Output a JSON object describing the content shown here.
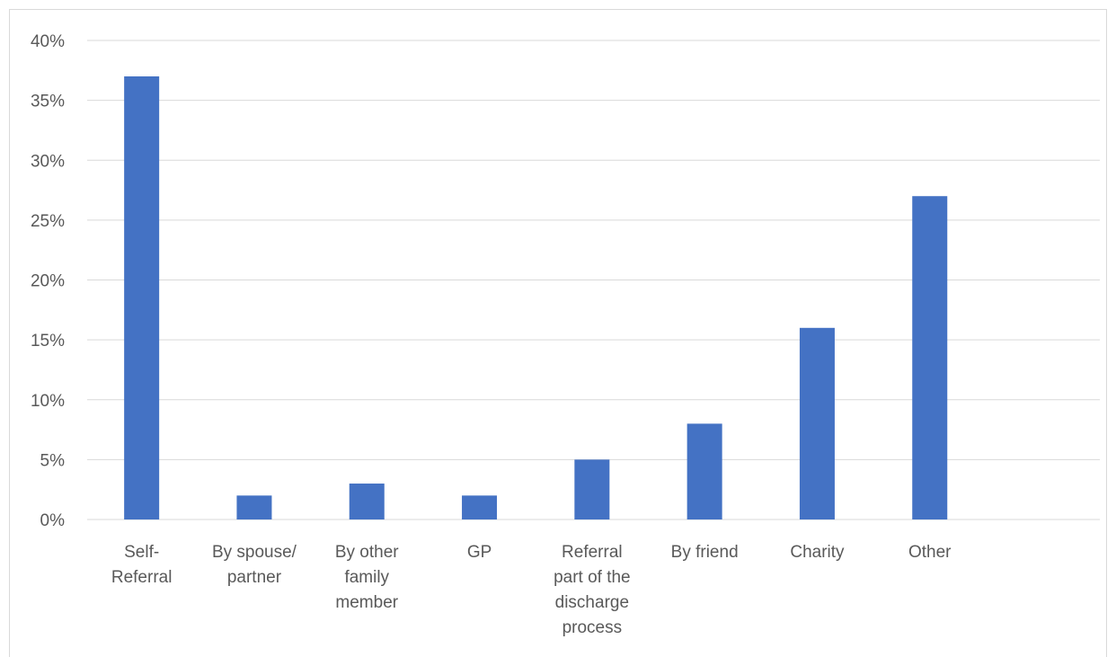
{
  "chart_data": {
    "type": "bar",
    "title": "",
    "xlabel": "",
    "ylabel": "",
    "categories": [
      [
        "Self-",
        "Referral"
      ],
      [
        "By spouse/",
        "partner"
      ],
      [
        "By other",
        "family",
        "member"
      ],
      [
        "GP"
      ],
      [
        "Referral",
        "part of the",
        "discharge",
        "process"
      ],
      [
        "By friend"
      ],
      [
        "Charity"
      ],
      [
        "Other"
      ]
    ],
    "values": [
      37,
      2,
      3,
      2,
      5,
      8,
      16,
      27
    ],
    "ylim": [
      0,
      40
    ],
    "yticks": [
      "0%",
      "5%",
      "10%",
      "15%",
      "20%",
      "25%",
      "30%",
      "35%",
      "40%"
    ],
    "grid": true,
    "legend": "none",
    "colors": {
      "bar": "#4472c4",
      "grid": "#d9d9d9",
      "text": "#595959"
    }
  }
}
